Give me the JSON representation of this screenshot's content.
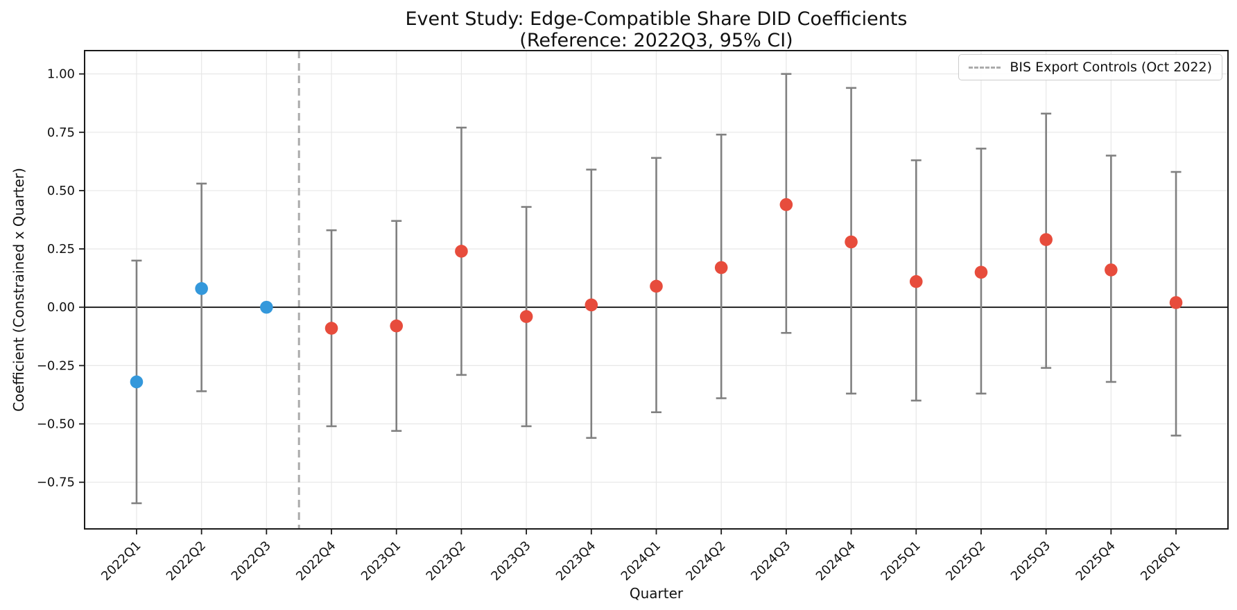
{
  "chart_data": {
    "type": "scatter",
    "title": "Event Study: Edge-Compatible Share DID Coefficients",
    "subtitle": "(Reference: 2022Q3, 95% CI)",
    "xlabel": "Quarter",
    "ylabel": "Coefficient (Constrained x Quarter)",
    "legend_label": "BIS Export Controls (Oct 2022)",
    "legend_position": "upper right",
    "categories": [
      "2022Q1",
      "2022Q2",
      "2022Q3",
      "2022Q4",
      "2023Q1",
      "2023Q2",
      "2023Q3",
      "2023Q4",
      "2024Q1",
      "2024Q2",
      "2024Q3",
      "2024Q4",
      "2025Q1",
      "2025Q2",
      "2025Q3",
      "2025Q4",
      "2026Q1"
    ],
    "series": [
      {
        "name": "DID coefficient",
        "values": [
          -0.32,
          0.08,
          0.0,
          -0.09,
          -0.08,
          0.24,
          -0.04,
          0.01,
          0.09,
          0.17,
          0.44,
          0.28,
          0.11,
          0.15,
          0.29,
          0.16,
          0.02
        ]
      }
    ],
    "ci_low": [
      -0.84,
      -0.36,
      0.0,
      -0.51,
      -0.53,
      -0.29,
      -0.51,
      -0.56,
      -0.45,
      -0.39,
      -0.11,
      -0.37,
      -0.4,
      -0.37,
      -0.26,
      -0.32,
      -0.55
    ],
    "ci_high": [
      0.2,
      0.53,
      0.0,
      0.33,
      0.37,
      0.77,
      0.43,
      0.59,
      0.64,
      0.74,
      1.0,
      0.94,
      0.63,
      0.68,
      0.83,
      0.65,
      0.58
    ],
    "reference_category": "2022Q3",
    "event_line_between_index": 2.5,
    "ylim": [
      -0.95,
      1.1
    ],
    "yticks": [
      1.0,
      0.75,
      0.5,
      0.25,
      0.0,
      -0.25,
      -0.5,
      -0.75
    ],
    "grid": true,
    "colors": {
      "pre": "#3498db",
      "post": "#e74c3c",
      "pre_count": 3,
      "errorbar": "#808080",
      "event_line": "#ababab",
      "zero_line": "#000000",
      "grid_line": "#e7e7e7",
      "spine": "#1a1a1a",
      "background": "#ffffff"
    }
  }
}
